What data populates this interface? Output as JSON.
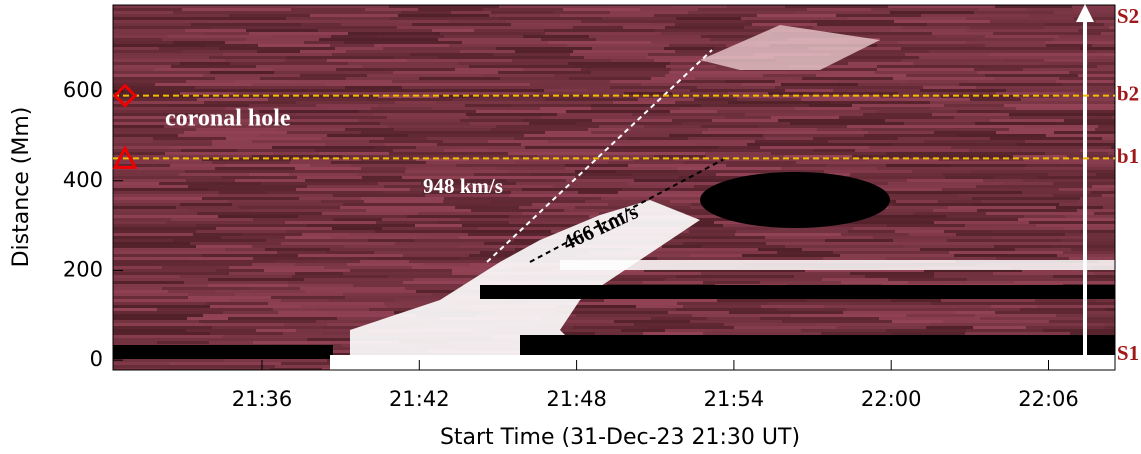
{
  "chart_data": {
    "type": "time-distance",
    "ylabel": "Distance (Mm)",
    "xlabel": "Start Time (31-Dec-23 21:30 UT)",
    "ylim": [
      -22,
      792
    ],
    "yticks": [
      0,
      200,
      400,
      600
    ],
    "xticks": [
      "21:36",
      "21:42",
      "21:48",
      "21:54",
      "22:00",
      "22:06"
    ],
    "lines": [
      {
        "label": "b2",
        "value": 590,
        "color": "#f0c000"
      },
      {
        "label": "b1",
        "value": 450,
        "color": "#f0c000"
      }
    ],
    "annotations": [
      "coronal hole",
      "948 km/s",
      "466 km/s"
    ],
    "slit_ends": [
      "S1",
      "S2"
    ]
  }
}
